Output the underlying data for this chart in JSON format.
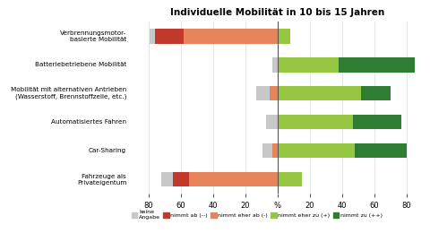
{
  "title": "Individuelle Mobilität in 10 bis 15 Jahren",
  "categories": [
    "Fahrzeuge als\nPrivateigentum",
    "Car-Sharing",
    "Automatisiertes Fahren",
    "Mobilität mit alternativen Antrieben\n(Wasserstoff, Brennstoffzelle, etc.)",
    "Batteriebetriebene Mobilität",
    "Verbrennungsmotor-\nbasierte Mobilität"
  ],
  "keine_angabe": [
    7,
    6,
    7,
    8,
    3,
    3
  ],
  "nimmt_ab_mm": [
    10,
    0,
    0,
    0,
    0,
    18
  ],
  "nimmt_eher_ab_m": [
    55,
    3,
    0,
    5,
    0,
    58
  ],
  "nimmt_eher_zu_p": [
    15,
    48,
    47,
    52,
    38,
    8
  ],
  "nimmt_zu_pp": [
    0,
    32,
    30,
    18,
    47,
    0
  ],
  "colors": {
    "keine_angabe": "#c8c8c8",
    "nimmt_ab_mm": "#c0392b",
    "nimmt_eher_ab_m": "#e8845a",
    "nimmt_eher_zu_p": "#95c840",
    "nimmt_zu_pp": "#2e7d32"
  },
  "legend_labels": [
    "keine\nAngabe",
    "nimmt ab (--)",
    "nimmt eher ab (-)",
    "nimmt eher zu (+)",
    "nimmt zu (++)"
  ],
  "xlim": 92,
  "tick_positions": [
    -80,
    -60,
    -40,
    -20,
    0,
    20,
    40,
    60,
    80
  ],
  "tick_labels": [
    "80",
    "60",
    "40",
    "20",
    "%",
    "20",
    "40",
    "60",
    "80"
  ]
}
